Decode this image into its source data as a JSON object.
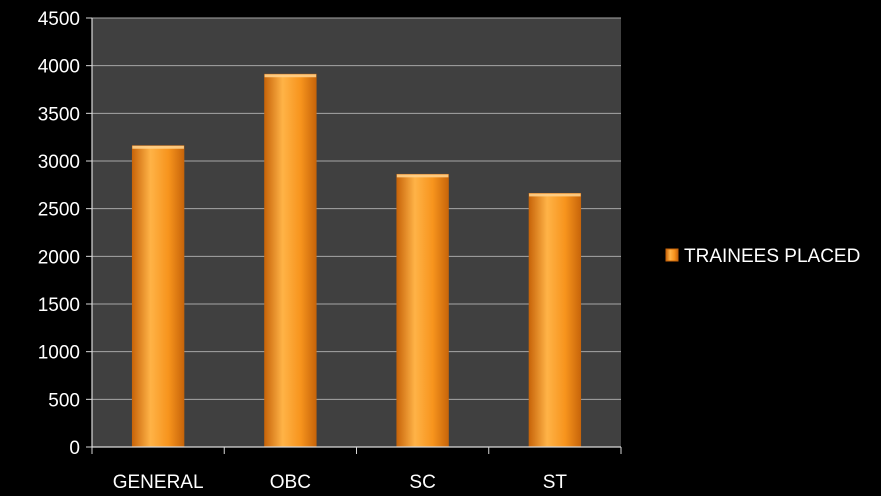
{
  "chart_data": {
    "type": "bar",
    "title": "",
    "xlabel": "",
    "ylabel": "",
    "categories": [
      "GENERAL",
      "OBC",
      "SC",
      "ST"
    ],
    "series": [
      {
        "name": "TRAINEES PLACED",
        "values": [
          3160,
          3910,
          2860,
          2660
        ],
        "color": "#F7941D"
      }
    ],
    "ylim": [
      0,
      4500
    ],
    "yticks": [
      "0",
      "500",
      "1000",
      "1500",
      "2000",
      "2500",
      "3000",
      "3500",
      "4000",
      "4500"
    ],
    "grid": true,
    "legend_position": "right"
  },
  "colors": {
    "background": "#000000",
    "plot_area": "#404040",
    "gridline": "#A6A6A6",
    "axis": "#D9D9D9",
    "text": "#FFFFFF",
    "bar_light": "#FFB347",
    "bar_mid": "#F7941D",
    "bar_dark": "#C8650A"
  }
}
